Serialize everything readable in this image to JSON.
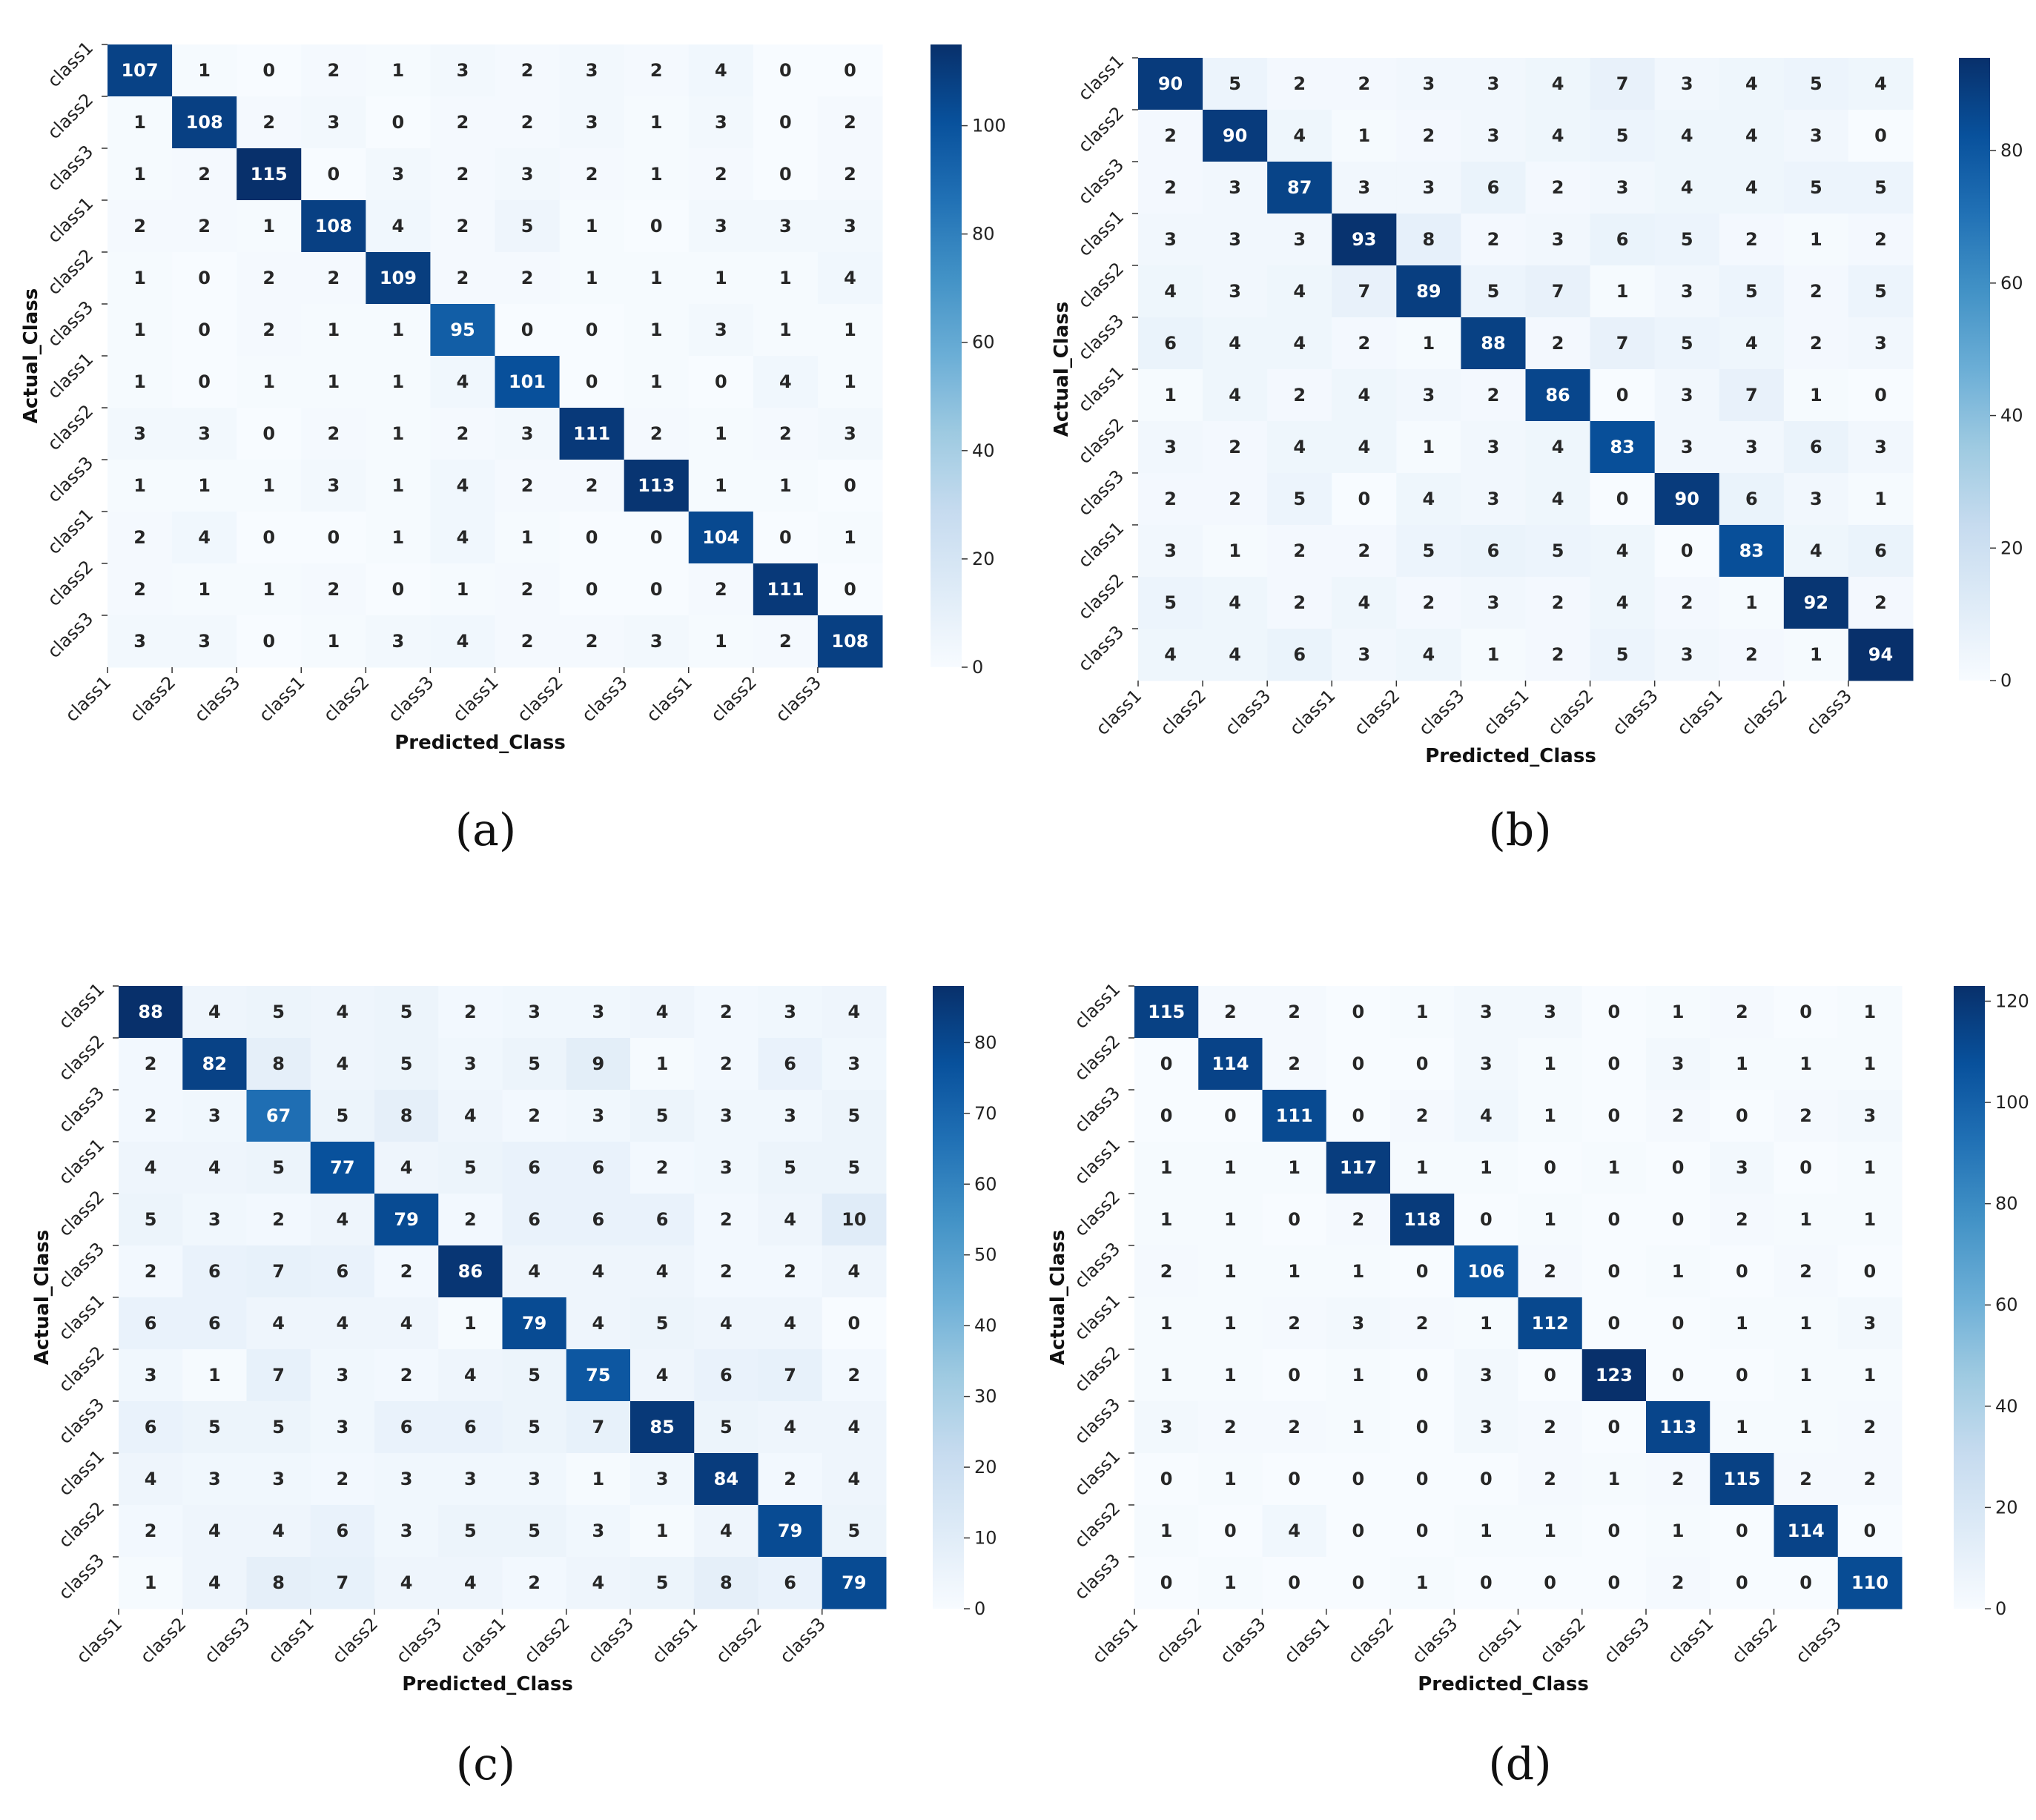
{
  "chart_data": [
    {
      "type": "heatmap",
      "panel": "(a)",
      "xlabel": "Predicted_Class",
      "ylabel": "Actual_Class",
      "x_ticks": [
        "class1",
        "class2",
        "class3",
        "class1",
        "class2",
        "class3",
        "class1",
        "class2",
        "class3",
        "class1",
        "class2",
        "class3"
      ],
      "y_ticks": [
        "class1",
        "class2",
        "class3",
        "class1",
        "class2",
        "class3",
        "class1",
        "class2",
        "class3",
        "class1",
        "class2",
        "class3"
      ],
      "colorbar_ticks": [
        0,
        20,
        40,
        60,
        80,
        100
      ],
      "colorbar_range": [
        0,
        115
      ],
      "colormap": [
        "#f7fbff",
        "#08306b"
      ],
      "values": [
        [
          107,
          1,
          0,
          2,
          1,
          3,
          2,
          3,
          2,
          4,
          0,
          0
        ],
        [
          1,
          108,
          2,
          3,
          0,
          2,
          2,
          3,
          1,
          3,
          0,
          2
        ],
        [
          1,
          2,
          115,
          0,
          3,
          2,
          3,
          2,
          1,
          2,
          0,
          2
        ],
        [
          2,
          2,
          1,
          108,
          4,
          2,
          5,
          1,
          0,
          3,
          3,
          3
        ],
        [
          1,
          0,
          2,
          2,
          109,
          2,
          2,
          1,
          1,
          1,
          1,
          4
        ],
        [
          1,
          0,
          2,
          1,
          1,
          95,
          0,
          0,
          1,
          3,
          1,
          1
        ],
        [
          1,
          0,
          1,
          1,
          1,
          4,
          101,
          0,
          1,
          0,
          4,
          1
        ],
        [
          3,
          3,
          0,
          2,
          1,
          2,
          3,
          111,
          2,
          1,
          2,
          3
        ],
        [
          1,
          1,
          1,
          3,
          1,
          4,
          2,
          2,
          113,
          1,
          1,
          0
        ],
        [
          2,
          4,
          0,
          0,
          1,
          4,
          1,
          0,
          0,
          104,
          0,
          1
        ],
        [
          2,
          1,
          1,
          2,
          0,
          1,
          2,
          0,
          0,
          2,
          111,
          0
        ],
        [
          3,
          3,
          0,
          1,
          3,
          4,
          2,
          2,
          3,
          1,
          2,
          108
        ]
      ]
    },
    {
      "type": "heatmap",
      "panel": "(b)",
      "xlabel": "Predicted_Class",
      "ylabel": "Actual_Class",
      "x_ticks": [
        "class1",
        "class2",
        "class3",
        "class1",
        "class2",
        "class3",
        "class1",
        "class2",
        "class3",
        "class1",
        "class2",
        "class3"
      ],
      "y_ticks": [
        "class1",
        "class2",
        "class3",
        "class1",
        "class2",
        "class3",
        "class1",
        "class2",
        "class3",
        "class1",
        "class2",
        "class3"
      ],
      "colorbar_ticks": [
        0,
        20,
        40,
        60,
        80
      ],
      "colorbar_range": [
        0,
        94
      ],
      "colormap": [
        "#f7fbff",
        "#08306b"
      ],
      "values": [
        [
          90,
          5,
          2,
          2,
          3,
          3,
          4,
          7,
          3,
          4,
          5,
          4
        ],
        [
          2,
          90,
          4,
          1,
          2,
          3,
          4,
          5,
          4,
          4,
          3,
          0
        ],
        [
          2,
          3,
          87,
          3,
          3,
          6,
          2,
          3,
          4,
          4,
          5,
          5
        ],
        [
          3,
          3,
          3,
          93,
          8,
          2,
          3,
          6,
          5,
          2,
          1,
          2
        ],
        [
          4,
          3,
          4,
          7,
          89,
          5,
          7,
          1,
          3,
          5,
          2,
          5
        ],
        [
          6,
          4,
          4,
          2,
          1,
          88,
          2,
          7,
          5,
          4,
          2,
          3
        ],
        [
          1,
          4,
          2,
          4,
          3,
          2,
          86,
          0,
          3,
          7,
          1,
          0
        ],
        [
          3,
          2,
          4,
          4,
          1,
          3,
          4,
          83,
          3,
          3,
          6,
          3
        ],
        [
          2,
          2,
          5,
          0,
          4,
          3,
          4,
          0,
          90,
          6,
          3,
          1
        ],
        [
          3,
          1,
          2,
          2,
          5,
          6,
          5,
          4,
          0,
          83,
          4,
          6
        ],
        [
          5,
          4,
          2,
          4,
          2,
          3,
          2,
          4,
          2,
          1,
          92,
          2
        ],
        [
          4,
          4,
          6,
          3,
          4,
          1,
          2,
          5,
          3,
          2,
          1,
          94
        ]
      ]
    },
    {
      "type": "heatmap",
      "panel": "(c)",
      "xlabel": "Predicted_Class",
      "ylabel": "Actual_Class",
      "x_ticks": [
        "class1",
        "class2",
        "class3",
        "class1",
        "class2",
        "class3",
        "class1",
        "class2",
        "class3",
        "class1",
        "class2",
        "class3"
      ],
      "y_ticks": [
        "class1",
        "class2",
        "class3",
        "class1",
        "class2",
        "class3",
        "class1",
        "class2",
        "class3",
        "class1",
        "class2",
        "class3"
      ],
      "colorbar_ticks": [
        0,
        10,
        20,
        30,
        40,
        50,
        60,
        70,
        80
      ],
      "colorbar_range": [
        0,
        88
      ],
      "colormap": [
        "#f7fbff",
        "#08306b"
      ],
      "values": [
        [
          88,
          4,
          5,
          4,
          5,
          2,
          3,
          3,
          4,
          2,
          3,
          4
        ],
        [
          2,
          82,
          8,
          4,
          5,
          3,
          5,
          9,
          1,
          2,
          6,
          3
        ],
        [
          2,
          3,
          67,
          5,
          8,
          4,
          2,
          3,
          5,
          3,
          3,
          5
        ],
        [
          4,
          4,
          5,
          77,
          4,
          5,
          6,
          6,
          2,
          3,
          5,
          5
        ],
        [
          5,
          3,
          2,
          4,
          79,
          2,
          6,
          6,
          6,
          2,
          4,
          10
        ],
        [
          2,
          6,
          7,
          6,
          2,
          86,
          4,
          4,
          4,
          2,
          2,
          4
        ],
        [
          6,
          6,
          4,
          4,
          4,
          1,
          79,
          4,
          5,
          4,
          4,
          0
        ],
        [
          3,
          1,
          7,
          3,
          2,
          4,
          5,
          75,
          4,
          6,
          7,
          2
        ],
        [
          6,
          5,
          5,
          3,
          6,
          6,
          5,
          7,
          85,
          5,
          4,
          4
        ],
        [
          4,
          3,
          3,
          2,
          3,
          3,
          3,
          1,
          3,
          84,
          2,
          4
        ],
        [
          2,
          4,
          4,
          6,
          3,
          5,
          5,
          3,
          1,
          4,
          79,
          5
        ],
        [
          1,
          4,
          8,
          7,
          4,
          4,
          2,
          4,
          5,
          8,
          6,
          79
        ]
      ]
    },
    {
      "type": "heatmap",
      "panel": "(d)",
      "xlabel": "Predicted_Class",
      "ylabel": "Actual_Class",
      "x_ticks": [
        "class1",
        "class2",
        "class3",
        "class1",
        "class2",
        "class3",
        "class1",
        "class2",
        "class3",
        "class1",
        "class2",
        "class3"
      ],
      "y_ticks": [
        "class1",
        "class2",
        "class3",
        "class1",
        "class2",
        "class3",
        "class1",
        "class2",
        "class3",
        "class1",
        "class2",
        "class3"
      ],
      "colorbar_ticks": [
        0,
        20,
        40,
        60,
        80,
        100,
        120
      ],
      "colorbar_range": [
        0,
        123
      ],
      "colormap": [
        "#f7fbff",
        "#08306b"
      ],
      "values": [
        [
          115,
          2,
          2,
          0,
          1,
          3,
          3,
          0,
          1,
          2,
          0,
          1
        ],
        [
          0,
          114,
          2,
          0,
          0,
          3,
          1,
          0,
          3,
          1,
          1,
          1
        ],
        [
          0,
          0,
          111,
          0,
          2,
          4,
          1,
          0,
          2,
          0,
          2,
          3
        ],
        [
          1,
          1,
          1,
          117,
          1,
          1,
          0,
          1,
          0,
          3,
          0,
          1
        ],
        [
          1,
          1,
          0,
          2,
          118,
          0,
          1,
          0,
          0,
          2,
          1,
          1
        ],
        [
          2,
          1,
          1,
          1,
          0,
          106,
          2,
          0,
          1,
          0,
          2,
          0
        ],
        [
          1,
          1,
          2,
          3,
          2,
          1,
          112,
          0,
          0,
          1,
          1,
          3
        ],
        [
          1,
          1,
          0,
          1,
          0,
          3,
          0,
          123,
          0,
          0,
          1,
          1
        ],
        [
          3,
          2,
          2,
          1,
          0,
          3,
          2,
          0,
          113,
          1,
          1,
          2
        ],
        [
          0,
          1,
          0,
          0,
          0,
          0,
          2,
          1,
          2,
          115,
          2,
          2
        ],
        [
          1,
          0,
          4,
          0,
          0,
          1,
          1,
          0,
          1,
          0,
          114,
          0
        ],
        [
          0,
          1,
          0,
          0,
          1,
          0,
          0,
          0,
          2,
          0,
          0,
          110
        ]
      ]
    }
  ],
  "captions": [
    "(a)",
    "(b)",
    "(c)",
    "(d)"
  ]
}
